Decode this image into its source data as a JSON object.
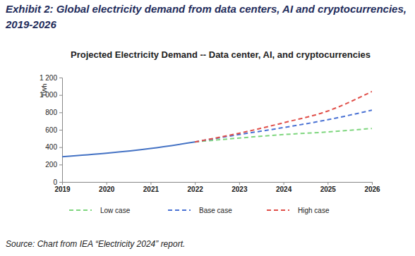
{
  "chart_data": {
    "type": "line",
    "title": "Exhibit 2: Global electricity demand from data centers, AI and cryptocurrencies, 2019-2026",
    "subtitle": "Projected Electricity Demand -- Data center, AI, and cryptocurrencies",
    "y_label": "TWh",
    "source": "Source: Chart from IEA “Electricity 2024” report.",
    "x": [
      2019,
      2020,
      2021,
      2022,
      2023,
      2024,
      2025,
      2026
    ],
    "xlim": [
      2019,
      2026
    ],
    "xticks": [
      2019,
      2020,
      2021,
      2022,
      2023,
      2024,
      2025,
      2026
    ],
    "ylim": [
      0,
      1200
    ],
    "yticks": [
      0,
      200,
      400,
      600,
      800,
      {
        "value": 1000,
        "label": "1 000"
      },
      {
        "value": 1200,
        "label": "1 200"
      }
    ],
    "grid": false,
    "legend": "bottom",
    "series": [
      {
        "color": "#4472c4",
        "line_style": "solid",
        "values": [
          290,
          330,
          385,
          460,
          null,
          null,
          null,
          null
        ]
      },
      {
        "name": "Low case",
        "color": "#7ed67e",
        "line_style": "dashed",
        "values": [
          null,
          null,
          null,
          460,
          505,
          545,
          575,
          615
        ]
      },
      {
        "name": "Base case",
        "color": "#4a72d4",
        "line_style": "dashed",
        "values": [
          null,
          null,
          null,
          460,
          545,
          625,
          715,
          825
        ]
      },
      {
        "name": "High case",
        "color": "#e0504a",
        "line_style": "dashed",
        "values": [
          null,
          null,
          null,
          460,
          560,
          680,
          815,
          1040
        ]
      }
    ]
  }
}
